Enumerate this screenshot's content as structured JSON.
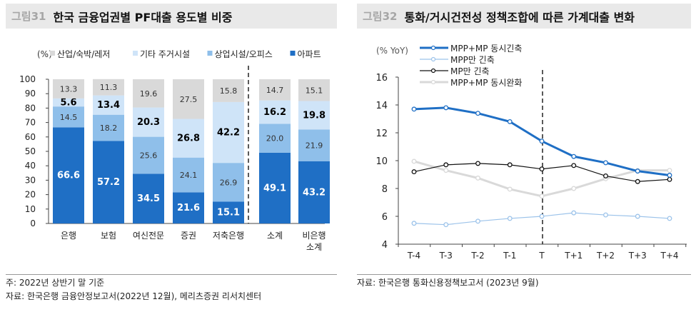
{
  "left": {
    "fig_no": "그림31",
    "title": "한국 금융업권별 PF대출 용도별 비중",
    "note": "주: 2022년 상반기 말 기준",
    "source": "자료: 한국은행 금융안정보고서(2022년 12월), 메리츠증권 리서치센터"
  },
  "right": {
    "fig_no": "그림32",
    "title": "통화/거시건전성 정책조합에 따른 가계대출 변화",
    "source": "자료: 한국은행 통화신용정책보고서 (2023년 9월)"
  },
  "chart_data": [
    {
      "type": "bar",
      "stacked": true,
      "ylabel": "(%)",
      "ylim": [
        0,
        100
      ],
      "yticks": [
        0,
        10,
        20,
        30,
        40,
        50,
        60,
        70,
        80,
        90,
        100
      ],
      "categories": [
        "은행",
        "보험",
        "여신전문",
        "증권",
        "저축은행",
        "소계",
        "비은행\n소계"
      ],
      "series": [
        {
          "name": "아파트",
          "color": "#1f6fc5",
          "values": [
            66.6,
            57.2,
            34.5,
            21.6,
            15.1,
            49.1,
            43.2
          ]
        },
        {
          "name": "상업시설/오피스",
          "color": "#8fbfea",
          "values": [
            14.5,
            18.2,
            25.6,
            24.1,
            26.9,
            20.0,
            21.9
          ]
        },
        {
          "name": "기타 주거시설",
          "color": "#cfe4f8",
          "values": [
            5.6,
            13.4,
            20.3,
            26.8,
            42.2,
            16.2,
            19.8
          ]
        },
        {
          "name": "산업/숙박/레저",
          "color": "#d9d9d9",
          "values": [
            13.3,
            11.3,
            19.6,
            27.5,
            15.8,
            14.7,
            15.1
          ]
        }
      ],
      "legend": "top",
      "divider_after": "저축은행"
    },
    {
      "type": "line",
      "ylabel": "(% YoY)",
      "ylim": [
        4,
        16
      ],
      "yticks": [
        4,
        6,
        8,
        10,
        12,
        14,
        16
      ],
      "x": [
        "T-4",
        "T-3",
        "T-2",
        "T-1",
        "T",
        "T+1",
        "T+2",
        "T+3",
        "T+4"
      ],
      "series": [
        {
          "name": "MPP+MP  동시긴축",
          "color": "#1f6fc5",
          "values": [
            13.7,
            13.8,
            13.4,
            12.8,
            11.4,
            10.3,
            9.85,
            9.25,
            8.95
          ]
        },
        {
          "name": "MPP만  긴축",
          "color": "#9cc3ea",
          "values": [
            5.5,
            5.4,
            5.65,
            5.85,
            6.0,
            6.25,
            6.1,
            6.0,
            5.85
          ]
        },
        {
          "name": "MP만  긴축",
          "color": "#111111",
          "values": [
            9.2,
            9.7,
            9.8,
            9.7,
            9.4,
            9.65,
            8.9,
            8.5,
            8.65
          ]
        },
        {
          "name": "MPP+MP  동시완화",
          "color": "#d9d9d9",
          "values": [
            9.95,
            9.3,
            8.75,
            7.95,
            7.45,
            8.0,
            8.7,
            9.3,
            9.3
          ]
        }
      ],
      "legend": "top-left",
      "divider_at": "T"
    }
  ]
}
